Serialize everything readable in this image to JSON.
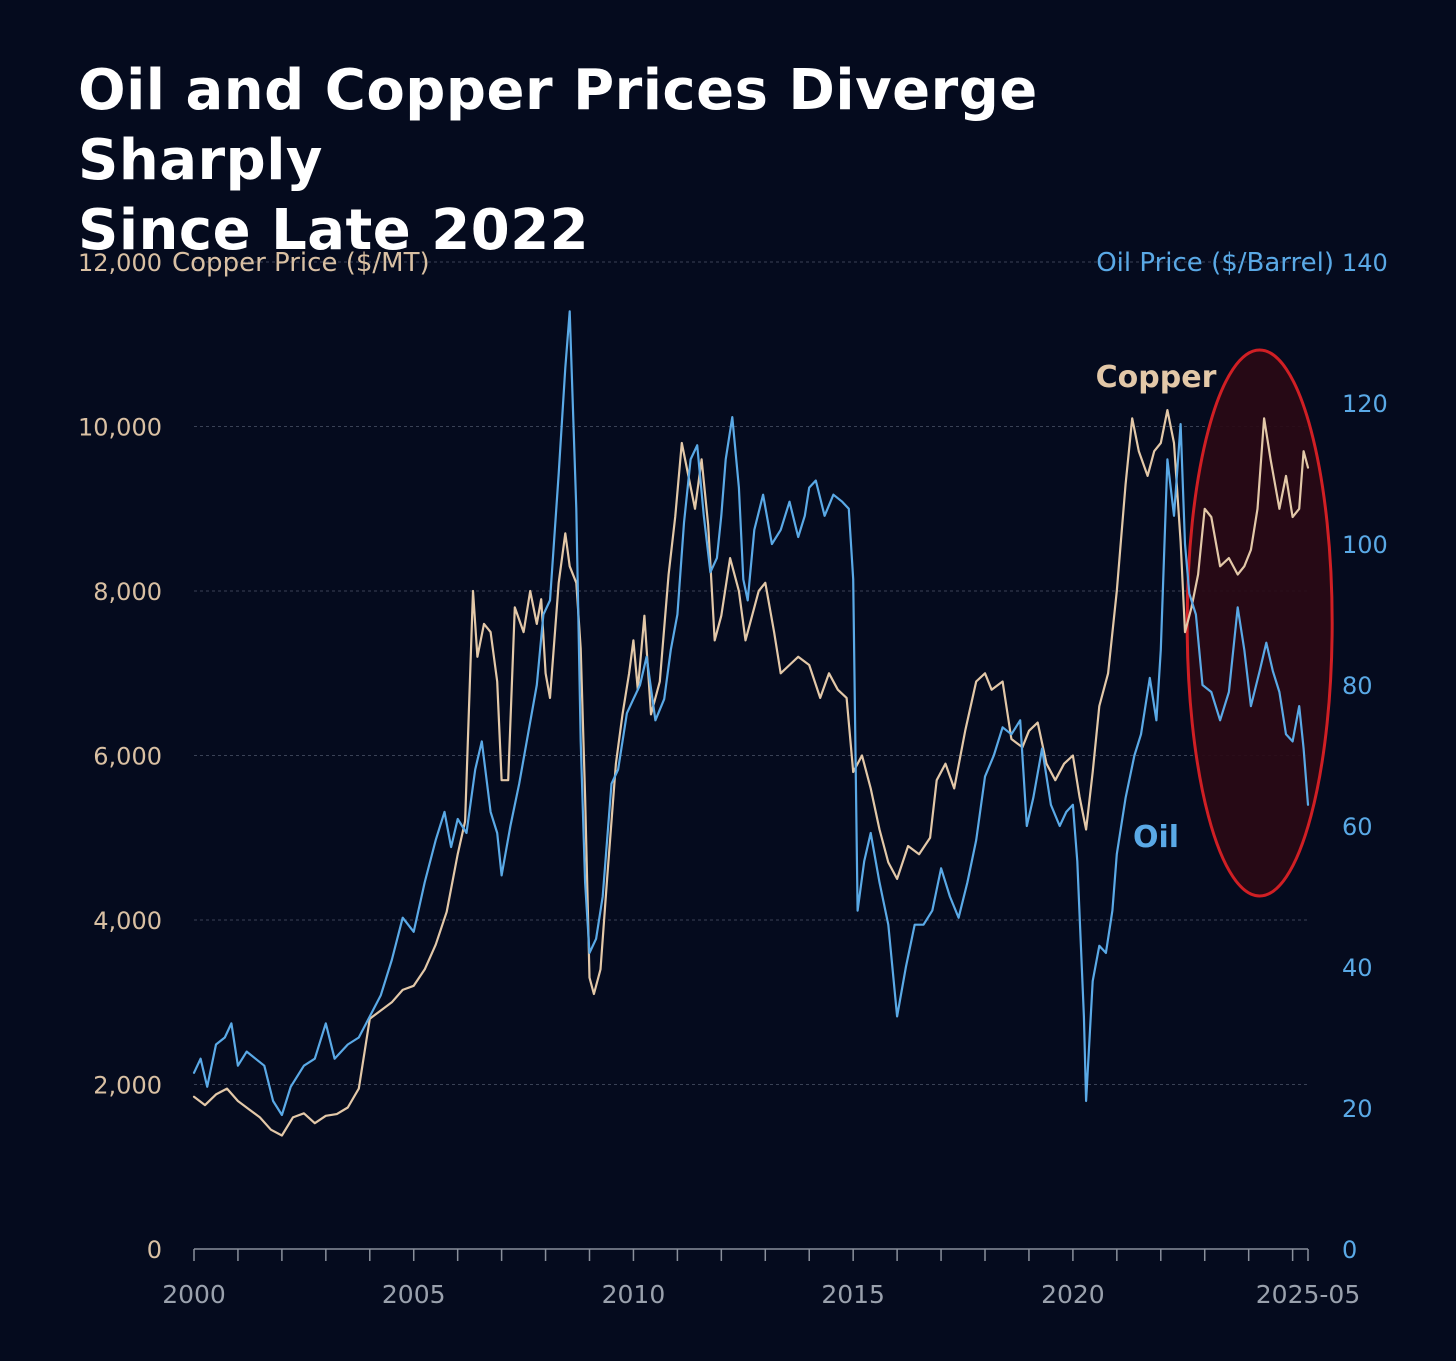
{
  "title": {
    "line1": "Oil and Copper Prices Diverge Sharply",
    "line2": "Since Late 2022"
  },
  "colors": {
    "background": "#050b1e",
    "copper": "#e3c8a8",
    "oil": "#5aa9e6",
    "highlight": "#d01f24",
    "grid": "#3a4256"
  },
  "chart_data": {
    "type": "line",
    "title": "Oil and Copper Prices Diverge Sharply Since Late 2022",
    "xlabel": "",
    "x_range": [
      2000,
      2025.35
    ],
    "x_ticks": [
      {
        "value": 2000,
        "label": "2000"
      },
      {
        "value": 2005,
        "label": "2005"
      },
      {
        "value": 2010,
        "label": "2010"
      },
      {
        "value": 2015,
        "label": "2015"
      },
      {
        "value": 2020,
        "label": "2020"
      },
      {
        "value": 2025.35,
        "label": "2025-05"
      }
    ],
    "y_left": {
      "label": "Copper Price ($/MT)",
      "range": [
        0,
        12000
      ],
      "ticks": [
        "0",
        "2,000",
        "4,000",
        "6,000",
        "8,000",
        "10,000",
        "12,000"
      ],
      "tick_values": [
        0,
        2000,
        4000,
        6000,
        8000,
        10000,
        12000
      ]
    },
    "y_right": {
      "label": "Oil Price ($/Barrel)",
      "range": [
        0,
        140
      ],
      "ticks": [
        "0",
        "20",
        "40",
        "60",
        "80",
        "100",
        "120",
        "140"
      ],
      "tick_values": [
        0,
        20,
        40,
        60,
        80,
        100,
        120,
        140
      ]
    },
    "gridlines": true,
    "series": [
      {
        "name": "Copper",
        "axis": "left",
        "label": "Copper",
        "points": [
          [
            2000.0,
            1850
          ],
          [
            2000.25,
            1750
          ],
          [
            2000.5,
            1880
          ],
          [
            2000.75,
            1950
          ],
          [
            2001.0,
            1800
          ],
          [
            2001.25,
            1700
          ],
          [
            2001.5,
            1600
          ],
          [
            2001.75,
            1450
          ],
          [
            2002.0,
            1380
          ],
          [
            2002.25,
            1600
          ],
          [
            2002.5,
            1650
          ],
          [
            2002.75,
            1530
          ],
          [
            2003.0,
            1620
          ],
          [
            2003.25,
            1640
          ],
          [
            2003.5,
            1720
          ],
          [
            2003.75,
            1950
          ],
          [
            2004.0,
            2800
          ],
          [
            2004.25,
            2900
          ],
          [
            2004.5,
            3000
          ],
          [
            2004.75,
            3150
          ],
          [
            2005.0,
            3200
          ],
          [
            2005.25,
            3400
          ],
          [
            2005.5,
            3700
          ],
          [
            2005.75,
            4100
          ],
          [
            2006.0,
            4800
          ],
          [
            2006.17,
            5200
          ],
          [
            2006.35,
            8000
          ],
          [
            2006.45,
            7200
          ],
          [
            2006.6,
            7600
          ],
          [
            2006.75,
            7500
          ],
          [
            2006.9,
            6900
          ],
          [
            2007.0,
            5700
          ],
          [
            2007.15,
            5700
          ],
          [
            2007.3,
            7800
          ],
          [
            2007.5,
            7500
          ],
          [
            2007.65,
            8000
          ],
          [
            2007.8,
            7600
          ],
          [
            2007.9,
            7900
          ],
          [
            2008.0,
            7000
          ],
          [
            2008.1,
            6700
          ],
          [
            2008.3,
            8100
          ],
          [
            2008.45,
            8700
          ],
          [
            2008.55,
            8300
          ],
          [
            2008.7,
            8100
          ],
          [
            2008.8,
            7300
          ],
          [
            2008.9,
            5500
          ],
          [
            2009.0,
            3300
          ],
          [
            2009.1,
            3100
          ],
          [
            2009.25,
            3400
          ],
          [
            2009.4,
            4500
          ],
          [
            2009.6,
            5900
          ],
          [
            2009.75,
            6500
          ],
          [
            2009.9,
            7000
          ],
          [
            2010.0,
            7400
          ],
          [
            2010.1,
            6800
          ],
          [
            2010.25,
            7700
          ],
          [
            2010.4,
            6500
          ],
          [
            2010.6,
            6900
          ],
          [
            2010.8,
            8200
          ],
          [
            2010.95,
            8900
          ],
          [
            2011.1,
            9800
          ],
          [
            2011.25,
            9400
          ],
          [
            2011.4,
            9000
          ],
          [
            2011.55,
            9600
          ],
          [
            2011.7,
            8800
          ],
          [
            2011.85,
            7400
          ],
          [
            2012.0,
            7700
          ],
          [
            2012.2,
            8400
          ],
          [
            2012.4,
            8000
          ],
          [
            2012.55,
            7400
          ],
          [
            2012.7,
            7700
          ],
          [
            2012.85,
            8000
          ],
          [
            2013.0,
            8100
          ],
          [
            2013.2,
            7500
          ],
          [
            2013.35,
            7000
          ],
          [
            2013.55,
            7100
          ],
          [
            2013.75,
            7200
          ],
          [
            2014.0,
            7100
          ],
          [
            2014.25,
            6700
          ],
          [
            2014.45,
            7000
          ],
          [
            2014.65,
            6800
          ],
          [
            2014.85,
            6700
          ],
          [
            2015.0,
            5800
          ],
          [
            2015.2,
            6000
          ],
          [
            2015.4,
            5600
          ],
          [
            2015.6,
            5100
          ],
          [
            2015.8,
            4700
          ],
          [
            2016.0,
            4500
          ],
          [
            2016.25,
            4900
          ],
          [
            2016.5,
            4800
          ],
          [
            2016.75,
            5000
          ],
          [
            2016.9,
            5700
          ],
          [
            2017.1,
            5900
          ],
          [
            2017.3,
            5600
          ],
          [
            2017.55,
            6300
          ],
          [
            2017.8,
            6900
          ],
          [
            2018.0,
            7000
          ],
          [
            2018.15,
            6800
          ],
          [
            2018.4,
            6900
          ],
          [
            2018.6,
            6200
          ],
          [
            2018.85,
            6100
          ],
          [
            2019.0,
            6300
          ],
          [
            2019.2,
            6400
          ],
          [
            2019.4,
            5900
          ],
          [
            2019.6,
            5700
          ],
          [
            2019.8,
            5900
          ],
          [
            2020.0,
            6000
          ],
          [
            2020.15,
            5500
          ],
          [
            2020.3,
            5100
          ],
          [
            2020.45,
            5800
          ],
          [
            2020.6,
            6600
          ],
          [
            2020.8,
            7000
          ],
          [
            2021.0,
            8000
          ],
          [
            2021.2,
            9300
          ],
          [
            2021.35,
            10100
          ],
          [
            2021.5,
            9700
          ],
          [
            2021.7,
            9400
          ],
          [
            2021.85,
            9700
          ],
          [
            2022.0,
            9800
          ],
          [
            2022.15,
            10200
          ],
          [
            2022.3,
            9800
          ],
          [
            2022.45,
            8600
          ],
          [
            2022.55,
            7500
          ],
          [
            2022.7,
            7800
          ],
          [
            2022.85,
            8200
          ],
          [
            2023.0,
            9000
          ],
          [
            2023.15,
            8900
          ],
          [
            2023.35,
            8300
          ],
          [
            2023.55,
            8400
          ],
          [
            2023.75,
            8200
          ],
          [
            2023.9,
            8300
          ],
          [
            2024.05,
            8500
          ],
          [
            2024.2,
            9000
          ],
          [
            2024.35,
            10100
          ],
          [
            2024.5,
            9600
          ],
          [
            2024.7,
            9000
          ],
          [
            2024.85,
            9400
          ],
          [
            2025.0,
            8900
          ],
          [
            2025.15,
            9000
          ],
          [
            2025.25,
            9700
          ],
          [
            2025.35,
            9500
          ]
        ]
      },
      {
        "name": "Oil",
        "axis": "right",
        "label": "Oil",
        "points": [
          [
            2000.0,
            25
          ],
          [
            2000.15,
            27
          ],
          [
            2000.3,
            23
          ],
          [
            2000.5,
            29
          ],
          [
            2000.7,
            30
          ],
          [
            2000.85,
            32
          ],
          [
            2001.0,
            26
          ],
          [
            2001.2,
            28
          ],
          [
            2001.4,
            27
          ],
          [
            2001.6,
            26
          ],
          [
            2001.8,
            21
          ],
          [
            2002.0,
            19
          ],
          [
            2002.2,
            23
          ],
          [
            2002.5,
            26
          ],
          [
            2002.75,
            27
          ],
          [
            2003.0,
            32
          ],
          [
            2003.2,
            27
          ],
          [
            2003.5,
            29
          ],
          [
            2003.75,
            30
          ],
          [
            2004.0,
            33
          ],
          [
            2004.25,
            36
          ],
          [
            2004.5,
            41
          ],
          [
            2004.75,
            47
          ],
          [
            2005.0,
            45
          ],
          [
            2005.25,
            52
          ],
          [
            2005.5,
            58
          ],
          [
            2005.7,
            62
          ],
          [
            2005.85,
            57
          ],
          [
            2006.0,
            61
          ],
          [
            2006.2,
            59
          ],
          [
            2006.4,
            68
          ],
          [
            2006.55,
            72
          ],
          [
            2006.75,
            62
          ],
          [
            2006.9,
            59
          ],
          [
            2007.0,
            53
          ],
          [
            2007.2,
            60
          ],
          [
            2007.4,
            66
          ],
          [
            2007.6,
            73
          ],
          [
            2007.8,
            80
          ],
          [
            2007.95,
            90
          ],
          [
            2008.1,
            92
          ],
          [
            2008.3,
            110
          ],
          [
            2008.45,
            125
          ],
          [
            2008.55,
            133
          ],
          [
            2008.7,
            105
          ],
          [
            2008.8,
            72
          ],
          [
            2008.9,
            52
          ],
          [
            2009.0,
            42
          ],
          [
            2009.15,
            44
          ],
          [
            2009.3,
            50
          ],
          [
            2009.5,
            66
          ],
          [
            2009.65,
            68
          ],
          [
            2009.85,
            76
          ],
          [
            2010.0,
            78
          ],
          [
            2010.15,
            80
          ],
          [
            2010.3,
            84
          ],
          [
            2010.5,
            75
          ],
          [
            2010.7,
            78
          ],
          [
            2010.85,
            85
          ],
          [
            2011.0,
            90
          ],
          [
            2011.15,
            103
          ],
          [
            2011.3,
            112
          ],
          [
            2011.45,
            114
          ],
          [
            2011.6,
            104
          ],
          [
            2011.75,
            96
          ],
          [
            2011.9,
            98
          ],
          [
            2012.0,
            104
          ],
          [
            2012.1,
            112
          ],
          [
            2012.25,
            118
          ],
          [
            2012.4,
            108
          ],
          [
            2012.5,
            95
          ],
          [
            2012.6,
            92
          ],
          [
            2012.75,
            102
          ],
          [
            2012.95,
            107
          ],
          [
            2013.15,
            100
          ],
          [
            2013.35,
            102
          ],
          [
            2013.55,
            106
          ],
          [
            2013.75,
            101
          ],
          [
            2013.9,
            104
          ],
          [
            2014.0,
            108
          ],
          [
            2014.15,
            109
          ],
          [
            2014.35,
            104
          ],
          [
            2014.55,
            107
          ],
          [
            2014.75,
            106
          ],
          [
            2014.9,
            105
          ],
          [
            2015.0,
            95
          ],
          [
            2015.1,
            48
          ],
          [
            2015.25,
            55
          ],
          [
            2015.4,
            59
          ],
          [
            2015.6,
            52
          ],
          [
            2015.8,
            46
          ],
          [
            2016.0,
            33
          ],
          [
            2016.2,
            40
          ],
          [
            2016.4,
            46
          ],
          [
            2016.6,
            46
          ],
          [
            2016.8,
            48
          ],
          [
            2017.0,
            54
          ],
          [
            2017.2,
            50
          ],
          [
            2017.4,
            47
          ],
          [
            2017.6,
            52
          ],
          [
            2017.8,
            58
          ],
          [
            2018.0,
            67
          ],
          [
            2018.2,
            70
          ],
          [
            2018.4,
            74
          ],
          [
            2018.6,
            73
          ],
          [
            2018.8,
            75
          ],
          [
            2018.95,
            60
          ],
          [
            2019.1,
            64
          ],
          [
            2019.3,
            71
          ],
          [
            2019.5,
            63
          ],
          [
            2019.7,
            60
          ],
          [
            2019.85,
            62
          ],
          [
            2020.0,
            63
          ],
          [
            2020.1,
            55
          ],
          [
            2020.25,
            33
          ],
          [
            2020.3,
            21
          ],
          [
            2020.45,
            38
          ],
          [
            2020.6,
            43
          ],
          [
            2020.75,
            42
          ],
          [
            2020.9,
            48
          ],
          [
            2021.0,
            56
          ],
          [
            2021.2,
            64
          ],
          [
            2021.4,
            70
          ],
          [
            2021.55,
            73
          ],
          [
            2021.75,
            81
          ],
          [
            2021.9,
            75
          ],
          [
            2022.0,
            85
          ],
          [
            2022.15,
            112
          ],
          [
            2022.3,
            104
          ],
          [
            2022.45,
            117
          ],
          [
            2022.55,
            100
          ],
          [
            2022.65,
            93
          ],
          [
            2022.8,
            90
          ],
          [
            2022.95,
            80
          ],
          [
            2023.15,
            79
          ],
          [
            2023.35,
            75
          ],
          [
            2023.55,
            79
          ],
          [
            2023.75,
            91
          ],
          [
            2023.9,
            85
          ],
          [
            2024.05,
            77
          ],
          [
            2024.25,
            82
          ],
          [
            2024.4,
            86
          ],
          [
            2024.55,
            82
          ],
          [
            2024.7,
            79
          ],
          [
            2024.85,
            73
          ],
          [
            2025.0,
            72
          ],
          [
            2025.15,
            77
          ],
          [
            2025.25,
            71
          ],
          [
            2025.35,
            63
          ]
        ]
      }
    ],
    "annotations": [
      {
        "type": "ellipse",
        "description": "highlighted region late 2022 to 2025",
        "x_from": 2022.6,
        "x_to": 2025.9
      }
    ]
  }
}
